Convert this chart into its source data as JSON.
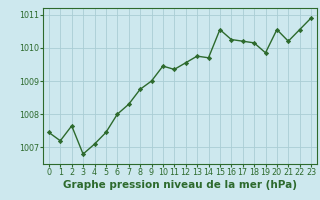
{
  "x": [
    0,
    1,
    2,
    3,
    4,
    5,
    6,
    7,
    8,
    9,
    10,
    11,
    12,
    13,
    14,
    15,
    16,
    17,
    18,
    19,
    20,
    21,
    22,
    23
  ],
  "y": [
    1007.45,
    1007.2,
    1007.65,
    1006.8,
    1007.1,
    1007.45,
    1008.0,
    1008.3,
    1008.75,
    1009.0,
    1009.45,
    1009.35,
    1009.55,
    1009.75,
    1009.7,
    1010.55,
    1010.25,
    1010.2,
    1010.15,
    1009.85,
    1010.55,
    1010.2,
    1010.55,
    1010.9
  ],
  "xlim": [
    -0.5,
    23.5
  ],
  "ylim": [
    1006.5,
    1011.2
  ],
  "yticks": [
    1007,
    1008,
    1009,
    1010,
    1011
  ],
  "xticks": [
    0,
    1,
    2,
    3,
    4,
    5,
    6,
    7,
    8,
    9,
    10,
    11,
    12,
    13,
    14,
    15,
    16,
    17,
    18,
    19,
    20,
    21,
    22,
    23
  ],
  "xlabel": "Graphe pression niveau de la mer (hPa)",
  "line_color": "#2d6a2d",
  "marker": "D",
  "marker_size": 2.2,
  "bg_color": "#cde8ee",
  "grid_color": "#aacdd4",
  "tick_label_fontsize": 5.8,
  "xlabel_fontsize": 7.5,
  "line_width": 1.0
}
